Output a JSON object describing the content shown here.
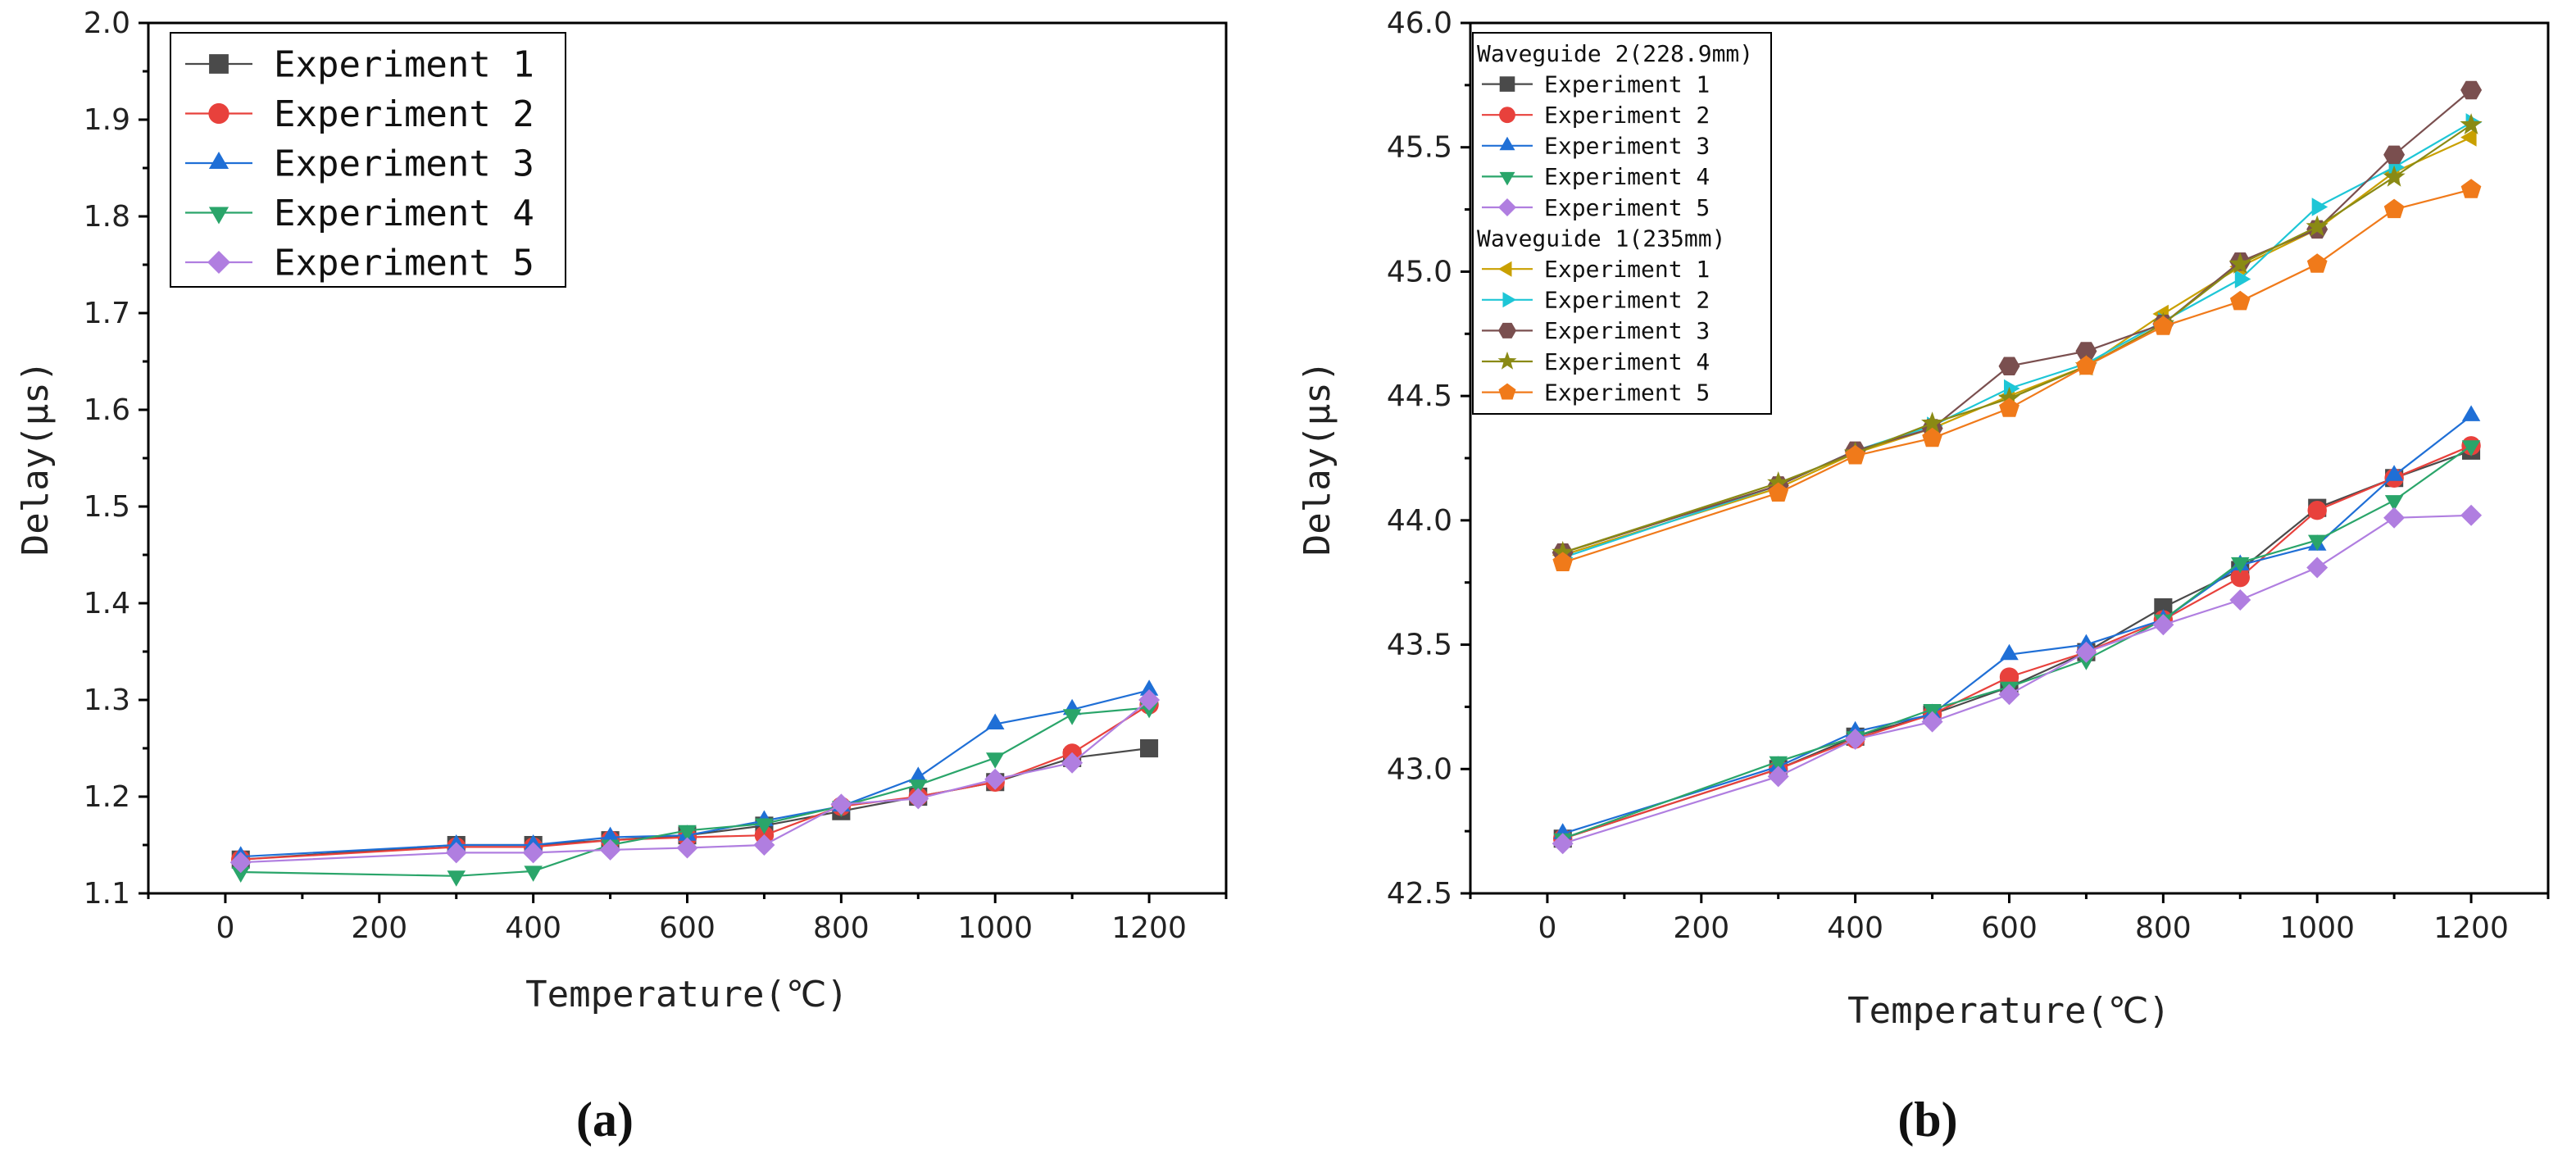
{
  "chart_data": [
    {
      "type": "line",
      "panel_label": "(a)",
      "title": "",
      "xlabel": "Temperature(℃)",
      "ylabel": "Delay(μs)",
      "xlim": [
        -100,
        1300
      ],
      "ylim": [
        1.1,
        2.0
      ],
      "xticks": [
        0,
        200,
        400,
        600,
        800,
        1000,
        1200
      ],
      "yticks": [
        1.1,
        1.2,
        1.3,
        1.4,
        1.5,
        1.6,
        1.7,
        1.8,
        1.9,
        2.0
      ],
      "ytick_labels": [
        "1.1",
        "1.2",
        "1.3",
        "1.4",
        "1.5",
        "1.6",
        "1.7",
        "1.8",
        "1.9",
        "2.0"
      ],
      "xtick_labels": [
        "0",
        "200",
        "400",
        "600",
        "800",
        "1000",
        "1200"
      ],
      "grid": false,
      "legend": "top-left",
      "series": [
        {
          "name": "Experiment 1",
          "marker": "square",
          "color": "#4a4a4a",
          "x": [
            20,
            300,
            400,
            500,
            600,
            700,
            800,
            900,
            1000,
            1100,
            1200
          ],
          "y": [
            1.135,
            1.15,
            1.15,
            1.155,
            1.16,
            1.17,
            1.185,
            1.2,
            1.215,
            1.24,
            1.25
          ]
        },
        {
          "name": "Experiment 2",
          "marker": "circle",
          "color": "#e8413c",
          "x": [
            20,
            300,
            400,
            500,
            600,
            700,
            800,
            900,
            1000,
            1100,
            1200
          ],
          "y": [
            1.135,
            1.148,
            1.148,
            1.155,
            1.158,
            1.16,
            1.19,
            1.2,
            1.215,
            1.245,
            1.295
          ]
        },
        {
          "name": "Experiment 3",
          "marker": "triangle-up",
          "color": "#1f6fd6",
          "x": [
            20,
            300,
            400,
            500,
            600,
            700,
            800,
            900,
            1000,
            1100,
            1200
          ],
          "y": [
            1.138,
            1.15,
            1.15,
            1.158,
            1.16,
            1.175,
            1.19,
            1.22,
            1.275,
            1.29,
            1.31
          ]
        },
        {
          "name": "Experiment 4",
          "marker": "triangle-down",
          "color": "#2aa56a",
          "x": [
            20,
            300,
            400,
            500,
            600,
            700,
            800,
            900,
            1000,
            1100,
            1200
          ],
          "y": [
            1.122,
            1.118,
            1.123,
            1.15,
            1.165,
            1.172,
            1.19,
            1.212,
            1.24,
            1.285,
            1.292
          ]
        },
        {
          "name": "Experiment 5",
          "marker": "diamond",
          "color": "#b07ee0",
          "x": [
            20,
            300,
            400,
            500,
            600,
            700,
            800,
            900,
            1000,
            1100,
            1200
          ],
          "y": [
            1.132,
            1.142,
            1.142,
            1.145,
            1.147,
            1.15,
            1.192,
            1.198,
            1.218,
            1.235,
            1.3
          ]
        }
      ]
    },
    {
      "type": "line",
      "panel_label": "(b)",
      "title": "",
      "xlabel": "Temperature(℃)",
      "ylabel": "Delay(μs)",
      "xlim": [
        -100,
        1300
      ],
      "ylim": [
        42.5,
        46.0
      ],
      "xticks": [
        0,
        200,
        400,
        600,
        800,
        1000,
        1200
      ],
      "yticks": [
        42.5,
        43.0,
        43.5,
        44.0,
        44.5,
        45.0,
        45.5,
        46.0
      ],
      "ytick_labels": [
        "42.5",
        "43.0",
        "43.5",
        "44.0",
        "44.5",
        "45.0",
        "45.5",
        "46.0"
      ],
      "xtick_labels": [
        "0",
        "200",
        "400",
        "600",
        "800",
        "1000",
        "1200"
      ],
      "grid": false,
      "legend": "top-left",
      "legend_groups": [
        {
          "title": "Waveguide 2(228.9mm)",
          "series_index": [
            0,
            1,
            2,
            3,
            4
          ]
        },
        {
          "title": "Waveguide 1(235mm)",
          "series_index": [
            5,
            6,
            7,
            8,
            9
          ]
        }
      ],
      "series": [
        {
          "name": "Experiment 1",
          "group": "Waveguide 2(228.9mm)",
          "marker": "square",
          "color": "#4a4a4a",
          "x": [
            20,
            300,
            400,
            500,
            600,
            700,
            800,
            900,
            1000,
            1100,
            1200
          ],
          "y": [
            42.72,
            43.0,
            43.13,
            43.22,
            43.33,
            43.47,
            43.65,
            43.8,
            44.05,
            44.17,
            44.28
          ]
        },
        {
          "name": "Experiment 2",
          "group": "Waveguide 2(228.9mm)",
          "marker": "circle",
          "color": "#e8413c",
          "x": [
            20,
            300,
            400,
            500,
            600,
            700,
            800,
            900,
            1000,
            1100,
            1200
          ],
          "y": [
            42.72,
            43.0,
            43.12,
            43.22,
            43.37,
            43.47,
            43.6,
            43.77,
            44.04,
            44.17,
            44.3
          ]
        },
        {
          "name": "Experiment 3",
          "group": "Waveguide 2(228.9mm)",
          "marker": "triangle-up",
          "color": "#1f6fd6",
          "x": [
            20,
            300,
            400,
            500,
            600,
            700,
            800,
            900,
            1000,
            1100,
            1200
          ],
          "y": [
            42.74,
            43.01,
            43.15,
            43.22,
            43.46,
            43.5,
            43.6,
            43.82,
            43.9,
            44.18,
            44.42
          ]
        },
        {
          "name": "Experiment 4",
          "group": "Waveguide 2(228.9mm)",
          "marker": "triangle-down",
          "color": "#2aa56a",
          "x": [
            20,
            300,
            400,
            500,
            600,
            700,
            800,
            900,
            1000,
            1100,
            1200
          ],
          "y": [
            42.72,
            43.03,
            43.13,
            43.24,
            43.33,
            43.44,
            43.6,
            43.83,
            43.92,
            44.08,
            44.3
          ]
        },
        {
          "name": "Experiment 5",
          "group": "Waveguide 2(228.9mm)",
          "marker": "diamond",
          "color": "#b07ee0",
          "x": [
            20,
            300,
            400,
            500,
            600,
            700,
            800,
            900,
            1000,
            1100,
            1200
          ],
          "y": [
            42.7,
            42.97,
            43.12,
            43.19,
            43.3,
            43.47,
            43.58,
            43.68,
            43.81,
            44.01,
            44.02
          ]
        },
        {
          "name": "Experiment 1",
          "group": "Waveguide 1(235mm)",
          "marker": "triangle-left",
          "color": "#c9a000",
          "x": [
            20,
            300,
            400,
            500,
            600,
            700,
            800,
            900,
            1000,
            1100,
            1200
          ],
          "y": [
            43.86,
            44.13,
            44.27,
            44.37,
            44.5,
            44.62,
            44.83,
            45.02,
            45.17,
            45.4,
            45.54
          ]
        },
        {
          "name": "Experiment 2",
          "group": "Waveguide 1(235mm)",
          "marker": "triangle-right",
          "color": "#1ec6d6",
          "x": [
            20,
            300,
            400,
            500,
            600,
            700,
            800,
            900,
            1000,
            1100,
            1200
          ],
          "y": [
            43.85,
            44.14,
            44.28,
            44.38,
            44.53,
            44.63,
            44.8,
            44.97,
            45.26,
            45.42,
            45.6
          ]
        },
        {
          "name": "Experiment 3",
          "group": "Waveguide 1(235mm)",
          "marker": "hexagon",
          "color": "#7a4f4f",
          "x": [
            20,
            300,
            400,
            500,
            600,
            700,
            800,
            900,
            1000,
            1100,
            1200
          ],
          "y": [
            43.87,
            44.14,
            44.28,
            44.37,
            44.62,
            44.68,
            44.79,
            45.04,
            45.17,
            45.47,
            45.73
          ]
        },
        {
          "name": "Experiment 4",
          "group": "Waveguide 1(235mm)",
          "marker": "star",
          "color": "#8a8a14",
          "x": [
            20,
            300,
            400,
            500,
            600,
            700,
            800,
            900,
            1000,
            1100,
            1200
          ],
          "y": [
            43.87,
            44.15,
            44.27,
            44.39,
            44.49,
            44.62,
            44.79,
            45.03,
            45.18,
            45.38,
            45.59
          ]
        },
        {
          "name": "Experiment 5",
          "group": "Waveguide 1(235mm)",
          "marker": "pentagon",
          "color": "#f07a1a",
          "x": [
            20,
            300,
            400,
            500,
            600,
            700,
            800,
            900,
            1000,
            1100,
            1200
          ],
          "y": [
            43.83,
            44.11,
            44.26,
            44.33,
            44.45,
            44.62,
            44.78,
            44.88,
            45.03,
            45.25,
            45.33
          ]
        }
      ]
    }
  ]
}
